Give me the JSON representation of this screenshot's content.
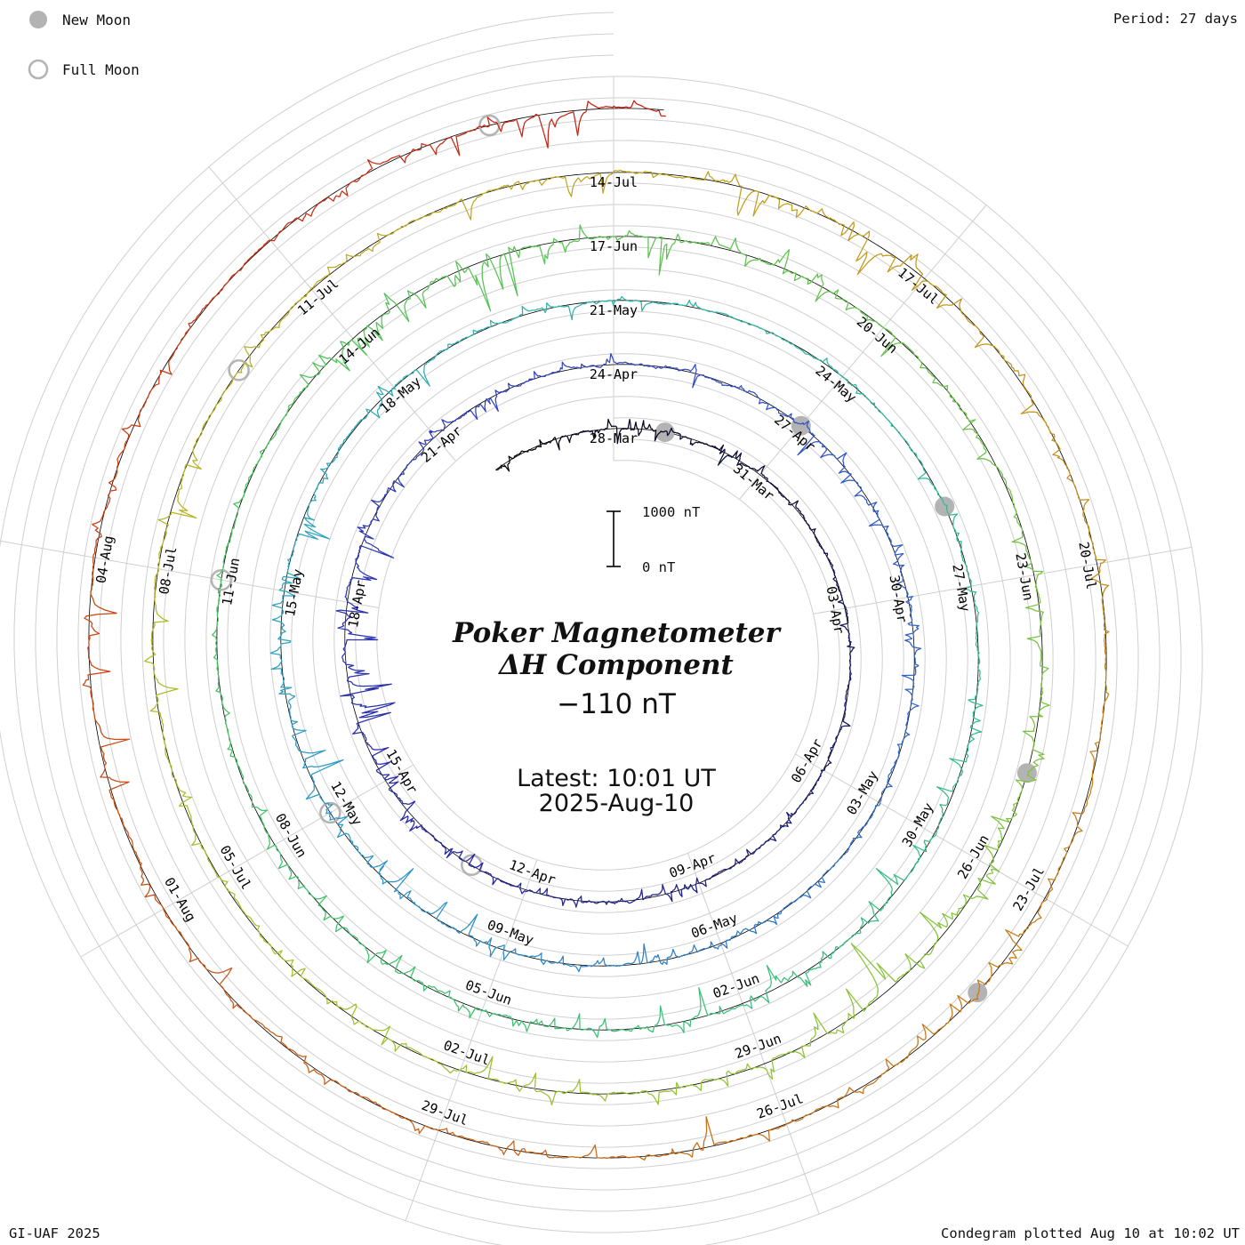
{
  "legend": {
    "new_moon": "New Moon",
    "full_moon": "Full Moon"
  },
  "corner": {
    "period": "Period: 27 days",
    "credit": "GI-UAF 2025",
    "plotted": "Condegram plotted Aug 10 at 10:02 UT"
  },
  "center": {
    "title_line1": "Poker Magnetometer",
    "title_line2": "ΔH Component",
    "current_value": "−110 nT",
    "latest_line1": "Latest: 10:01 UT",
    "latest_line2": "2025-Aug-10",
    "accent_color": "#ee3f3b"
  },
  "scale_bar": {
    "top_label": "1000 nT",
    "bottom_label": "0 nT"
  },
  "chart_data": {
    "type": "line",
    "subtype": "condegram-polar-spiral",
    "title": "Poker Magnetometer ΔH Component",
    "units": "nT",
    "period_days": 27,
    "direction": "clockwise",
    "start_date": "25-Mar-2025",
    "end_date": "10-Aug-2025 10:01 UT",
    "latest_value_nT": -110,
    "scale_bar_nT": 1000,
    "grid_color": "#cfcfcf",
    "baseline_color": "#000000",
    "moon_color": "#b3b3b3",
    "ring_date_labels": [
      "28-Mar",
      "31-Mar",
      "03-Apr",
      "06-Apr",
      "09-Apr",
      "12-Apr",
      "15-Apr",
      "18-Apr",
      "21-Apr",
      "24-Apr",
      "27-Apr",
      "30-Apr",
      "03-May",
      "06-May",
      "09-May",
      "12-May",
      "15-May",
      "18-May",
      "21-May",
      "24-May",
      "27-May",
      "30-May",
      "02-Jun",
      "05-Jun",
      "08-Jun",
      "11-Jun",
      "14-Jun",
      "17-Jun",
      "20-Jun",
      "23-Jun",
      "26-Jun",
      "29-Jun",
      "02-Jul",
      "05-Jul",
      "08-Jul",
      "11-Jul",
      "14-Jul",
      "17-Jul",
      "20-Jul",
      "23-Jul",
      "26-Jul",
      "29-Jul",
      "01-Aug",
      "04-Aug"
    ],
    "label_step_days": 3,
    "new_moons": [
      {
        "date": "29-Mar",
        "day": 1
      },
      {
        "date": "27-Apr",
        "day": 30
      },
      {
        "date": "26-May",
        "day": 59
      },
      {
        "date": "25-Jun",
        "day": 89
      },
      {
        "date": "24-Jul",
        "day": 118
      }
    ],
    "full_moons": [
      {
        "date": "13-Apr",
        "day": 16
      },
      {
        "date": "12-May",
        "day": 45
      },
      {
        "date": "11-Jun",
        "day": 75
      },
      {
        "date": "10-Jul",
        "day": 104
      },
      {
        "date": "09-Aug",
        "day": 134
      }
    ],
    "palette_stops": [
      [
        -3,
        "#000000"
      ],
      [
        6,
        "#14145a"
      ],
      [
        16,
        "#2626a0"
      ],
      [
        26,
        "#3344c0"
      ],
      [
        36,
        "#2e6cc8"
      ],
      [
        44,
        "#2e95c8"
      ],
      [
        52,
        "#30b0b0"
      ],
      [
        60,
        "#34ba92"
      ],
      [
        68,
        "#3cc172"
      ],
      [
        76,
        "#4cc25c"
      ],
      [
        84,
        "#63c24a"
      ],
      [
        92,
        "#8cc438"
      ],
      [
        100,
        "#aebe28"
      ],
      [
        108,
        "#c0a41e"
      ],
      [
        116,
        "#c6821a"
      ],
      [
        124,
        "#cc5c14"
      ],
      [
        131,
        "#c93812"
      ],
      [
        137,
        "#c61410"
      ]
    ],
    "activity_by_day": [
      0.5,
      0.55,
      0.5,
      0.45,
      0.3,
      0.35,
      0.3,
      0.2,
      0.15,
      0.2,
      0.15,
      0.2,
      0.15,
      0.2,
      0.25,
      0.4,
      0.45,
      0.4,
      0.35,
      0.3,
      0.5,
      0.7,
      0.8,
      0.75,
      0.6,
      0.5,
      0.45,
      0.35,
      0.3,
      0.35,
      0.3,
      0.35,
      0.45,
      0.5,
      0.45,
      0.4,
      0.35,
      0.3,
      0.3,
      0.25,
      0.35,
      0.5,
      0.55,
      0.45,
      0.35,
      0.45,
      0.55,
      0.6,
      0.65,
      0.6,
      0.55,
      0.5,
      0.45,
      0.4,
      0.4,
      0.35,
      0.3,
      0.25,
      0.2,
      0.25,
      0.2,
      0.25,
      0.3,
      0.35,
      0.5,
      0.6,
      0.65,
      0.6,
      0.65,
      0.6,
      0.5,
      0.55,
      0.6,
      0.5,
      0.4,
      0.35,
      0.3,
      0.2,
      0.2,
      0.3,
      0.6,
      0.75,
      0.8,
      0.7,
      0.6,
      0.55,
      0.45,
      0.5,
      0.45,
      0.4,
      0.45,
      0.55,
      0.65,
      0.7,
      0.65,
      0.6,
      0.55,
      0.5,
      0.55,
      0.5,
      0.45,
      0.4,
      0.35,
      0.45,
      0.5,
      0.45,
      0.35,
      0.3,
      0.4,
      0.5,
      0.55,
      0.5,
      0.6,
      0.65,
      0.6,
      0.5,
      0.4,
      0.35,
      0.3,
      0.35,
      0.45,
      0.5,
      0.55,
      0.5,
      0.4,
      0.35,
      0.4,
      0.35,
      0.4,
      0.5,
      0.55,
      0.5,
      0.4,
      0.3,
      0.3,
      0.35,
      0.5,
      0.55,
      0.45
    ],
    "noise_seed": 42
  }
}
